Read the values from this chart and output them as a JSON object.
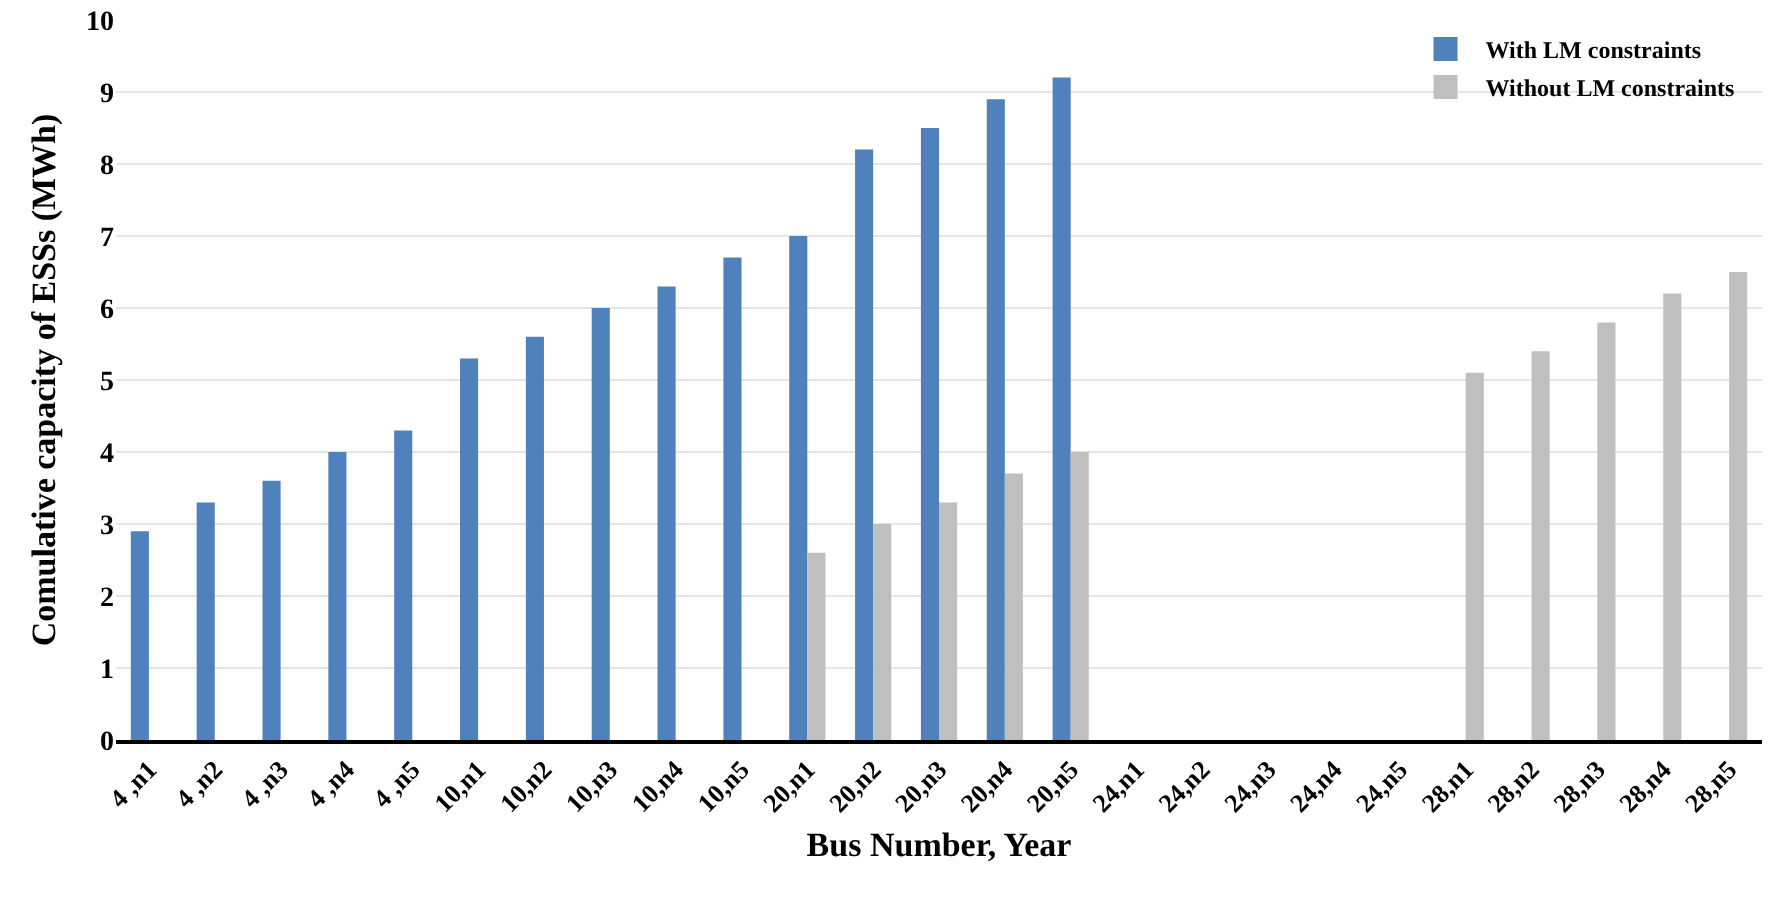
{
  "chart_data": {
    "type": "bar",
    "xlabel": "Bus Number, Year",
    "ylabel": "Comulative capacity of ESSs (MWh)",
    "categories": [
      "4 ,n1",
      "4 ,n2",
      "4 ,n3",
      "4 ,n4",
      "4 ,n5",
      "10,n1",
      "10,n2",
      "10,n3",
      "10,n4",
      "10,n5",
      "20,n1",
      "20,n2",
      "20,n3",
      "20,n4",
      "20,n5",
      "24,n1",
      "24,n2",
      "24,n3",
      "24,n4",
      "24,n5",
      "28,n1",
      "28,n2",
      "28,n3",
      "28,n4",
      "28,n5"
    ],
    "series": [
      {
        "name": "With LM constraints",
        "color": "#4f81bd",
        "values": [
          2.9,
          3.3,
          3.6,
          4.0,
          4.3,
          5.3,
          5.6,
          6.0,
          6.3,
          6.7,
          7.0,
          8.2,
          8.5,
          8.9,
          9.2,
          null,
          null,
          null,
          null,
          null,
          null,
          null,
          null,
          null,
          null
        ]
      },
      {
        "name": "Without LM constraints",
        "color": "#bfbfbf",
        "values": [
          null,
          null,
          null,
          null,
          null,
          null,
          null,
          null,
          null,
          null,
          2.6,
          3.0,
          3.3,
          3.7,
          4.0,
          null,
          null,
          null,
          null,
          null,
          5.1,
          5.4,
          5.8,
          6.2,
          6.5
        ]
      }
    ],
    "ylim": [
      0,
      10
    ],
    "yticks": [
      0,
      1,
      2,
      3,
      4,
      5,
      6,
      7,
      8,
      9,
      10
    ],
    "grid": "y",
    "legend": "top right"
  }
}
